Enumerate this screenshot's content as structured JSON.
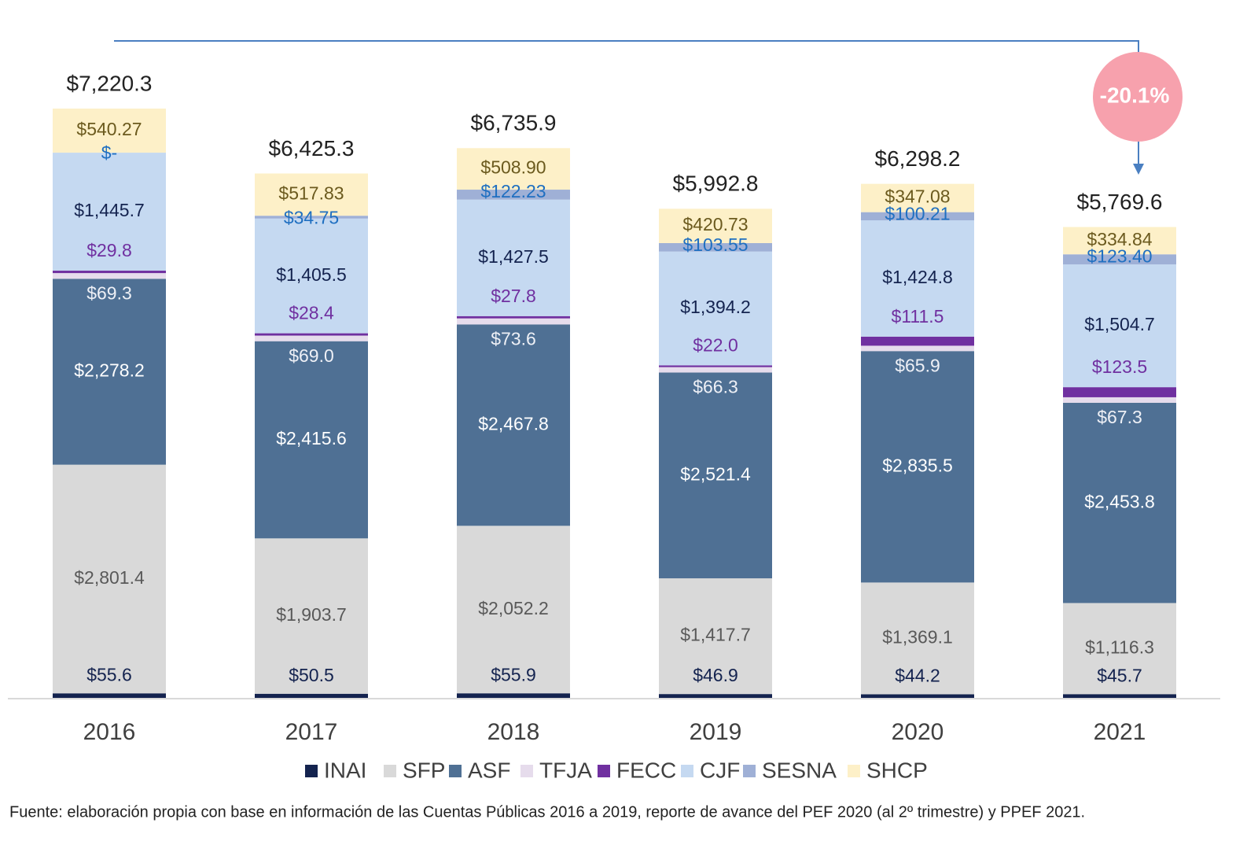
{
  "chart_data": {
    "type": "stacked_bar",
    "categories": [
      "2016",
      "2017",
      "2018",
      "2019",
      "2020",
      "2021"
    ],
    "series": [
      {
        "name": "INAI",
        "color": "#14234f",
        "label_color": "#14234f",
        "values": [
          55.6,
          50.5,
          55.9,
          46.9,
          44.2,
          45.7
        ],
        "value_labels": [
          "$55.6",
          "$50.5",
          "$55.9",
          "$46.9",
          "$44.2",
          "$45.7"
        ]
      },
      {
        "name": "SFP",
        "color": "#d9d9d9",
        "label_color": "#595959",
        "values": [
          2801.4,
          1903.7,
          2052.2,
          1417.7,
          1369.1,
          1116.3
        ],
        "value_labels": [
          "$2,801.4",
          "$1,903.7",
          "$2,052.2",
          "$1,417.7",
          "$1,369.1",
          "$1,116.3"
        ]
      },
      {
        "name": "ASF",
        "color": "#4f7094",
        "label_color": "#ffffff",
        "values": [
          2278.2,
          2415.6,
          2467.8,
          2521.4,
          2835.5,
          2453.8
        ],
        "value_labels": [
          "$2,278.2",
          "$2,415.6",
          "$2,467.8",
          "$2,521.4",
          "$2,835.5",
          "$2,453.8"
        ]
      },
      {
        "name": "TFJA",
        "color": "#e6dcec",
        "label_color": "#eef0f6",
        "values": [
          69.3,
          69.0,
          73.6,
          66.3,
          65.9,
          67.3
        ],
        "value_labels": [
          "$69.3",
          "$69.0",
          "$73.6",
          "$66.3",
          "$65.9",
          "$67.3"
        ]
      },
      {
        "name": "FECC",
        "color": "#7030a0",
        "label_color": "#7030a0",
        "values": [
          29.8,
          28.4,
          27.8,
          22.0,
          111.5,
          123.5
        ],
        "value_labels": [
          "$29.8",
          "$28.4",
          "$27.8",
          "$22.0",
          "$111.5",
          "$123.5"
        ]
      },
      {
        "name": "CJF",
        "color": "#c5d9f1",
        "label_color": "#14234f",
        "values": [
          1445.7,
          1405.5,
          1427.5,
          1394.2,
          1424.8,
          1504.7
        ],
        "value_labels": [
          "$1,445.7",
          "$1,405.5",
          "$1,427.5",
          "$1,394.2",
          "$1,424.8",
          "$1,504.7"
        ]
      },
      {
        "name": "SESNA",
        "color": "#9fb0d6",
        "label_color": "#1f6fc1",
        "values": [
          0,
          34.75,
          122.23,
          103.55,
          100.21,
          123.4
        ],
        "value_labels": [
          "$-",
          "$34.75",
          "$122.23",
          "$103.55",
          "$100.21",
          "$123.40"
        ]
      },
      {
        "name": "SHCP",
        "color": "#fdf0c8",
        "label_color": "#6b5a1e",
        "values": [
          540.27,
          517.83,
          508.9,
          420.73,
          347.08,
          334.84
        ],
        "value_labels": [
          "$540.27",
          "$517.83",
          "$508.90",
          "$420.73",
          "$347.08",
          "$334.84"
        ]
      }
    ],
    "totals": [
      7220.3,
      6425.3,
      6735.9,
      5992.8,
      6298.2,
      5769.6
    ],
    "total_labels": [
      "$7,220.3",
      "$6,425.3",
      "$6,735.9",
      "$5,992.8",
      "$6,298.2",
      "$5,769.6"
    ],
    "annotation": "-20.1%",
    "source": "Fuente: elaboración propia con base en información de las Cuentas Públicas 2016 a 2019, reporte de avance del PEF 2020 (al 2º trimestre) y PPEF 2021."
  }
}
